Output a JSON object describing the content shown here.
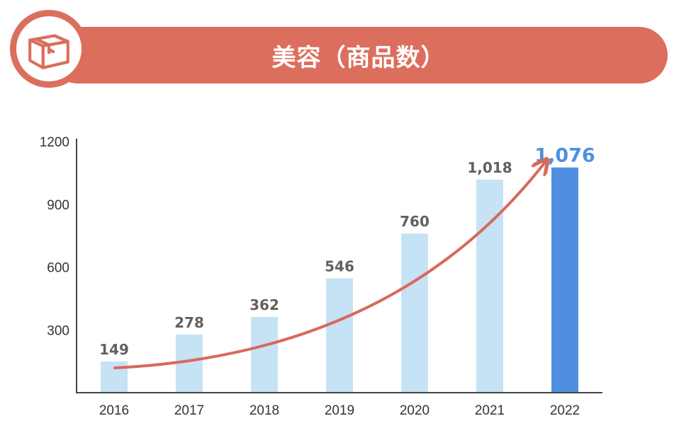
{
  "header": {
    "title": "美容（商品数）",
    "icon": "package-box-icon"
  },
  "colors": {
    "accent": "#dc6e5d",
    "bar": "#c6e2f5",
    "bar_highlight": "#4f8fe0",
    "value_label": "#616161",
    "value_label_highlight": "#4f8fe0",
    "trend_arrow": "#d8695b",
    "axis": "#444444"
  },
  "chart_data": {
    "type": "bar",
    "title": "美容（商品数）",
    "xlabel": "",
    "ylabel": "",
    "categories": [
      "2016",
      "2017",
      "2018",
      "2019",
      "2020",
      "2021",
      "2022"
    ],
    "values": [
      149,
      278,
      362,
      546,
      760,
      1018,
      1076
    ],
    "value_labels": [
      "149",
      "278",
      "362",
      "546",
      "760",
      "1,018",
      "1,076"
    ],
    "highlight_index": 6,
    "ylim": [
      0,
      1200
    ],
    "yticks": [
      300,
      600,
      900,
      1200
    ],
    "ytick_labels": [
      "300",
      "600",
      "900",
      "1200"
    ],
    "grid": false,
    "annotations": [
      "trend-arrow"
    ]
  }
}
